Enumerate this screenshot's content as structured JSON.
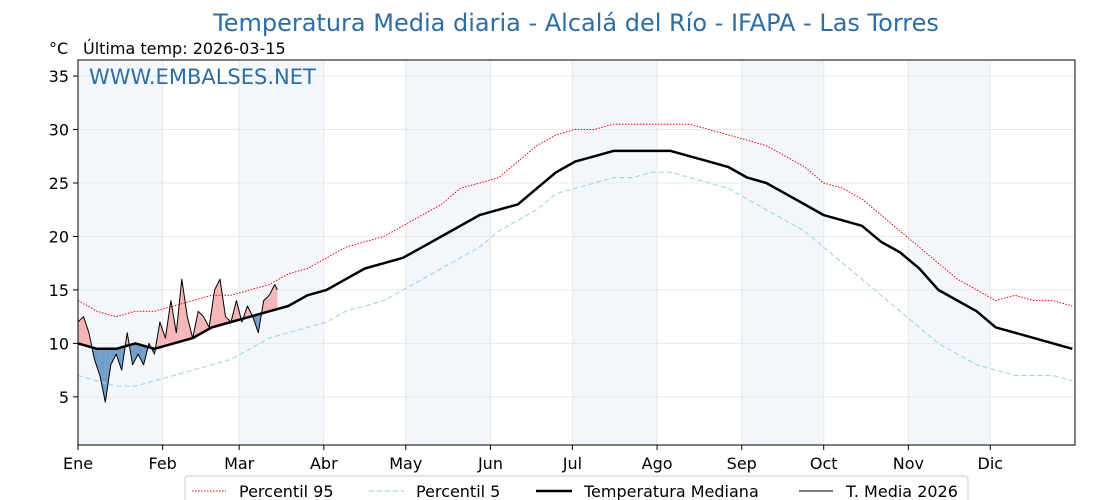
{
  "chart_data": {
    "type": "line",
    "title": "Temperatura Media diaria - Alcalá del Río - IFAPA - Las Torres",
    "unit_label": "°C",
    "last_temp_label": "Última temp: 2026-03-15",
    "watermark": "WWW.EMBALSES.NET",
    "ylim": [
      0.5,
      36.5
    ],
    "yticks": [
      5,
      10,
      15,
      20,
      25,
      30,
      35
    ],
    "xlim": [
      1,
      366
    ],
    "month_labels": [
      "Ene",
      "Feb",
      "Mar",
      "Abr",
      "May",
      "Jun",
      "Jul",
      "Ago",
      "Sep",
      "Oct",
      "Nov",
      "Dic"
    ],
    "month_start_days": [
      1,
      32,
      60,
      91,
      121,
      152,
      182,
      213,
      244,
      274,
      305,
      335
    ],
    "shaded_months": [
      "Ene",
      "Mar",
      "May",
      "Jul",
      "Sep",
      "Nov"
    ],
    "grid": true,
    "legend_position": "bottom-center",
    "series": [
      {
        "name": "Percentil 95",
        "color": "#ff0000",
        "style": "dotted",
        "x": [
          1,
          8,
          15,
          22,
          29,
          36,
          43,
          50,
          57,
          64,
          71,
          78,
          85,
          92,
          99,
          106,
          113,
          120,
          127,
          134,
          141,
          148,
          155,
          162,
          169,
          176,
          183,
          190,
          197,
          204,
          211,
          218,
          225,
          232,
          239,
          246,
          253,
          260,
          267,
          274,
          281,
          288,
          295,
          302,
          309,
          316,
          323,
          330,
          337,
          344,
          351,
          358,
          365
        ],
        "values": [
          14.0,
          13.0,
          12.5,
          13.0,
          13.0,
          13.5,
          14.0,
          14.5,
          14.5,
          15.0,
          15.5,
          16.5,
          17.0,
          18.0,
          19.0,
          19.5,
          20.0,
          21.0,
          22.0,
          23.0,
          24.5,
          25.0,
          25.5,
          27.0,
          28.5,
          29.5,
          30.0,
          30.0,
          30.5,
          30.5,
          30.5,
          30.5,
          30.5,
          30.0,
          29.5,
          29.0,
          28.5,
          27.5,
          26.5,
          25.0,
          24.5,
          23.5,
          22.0,
          20.5,
          19.0,
          17.5,
          16.0,
          15.0,
          14.0,
          14.5,
          14.0,
          14.0,
          13.5
        ]
      },
      {
        "name": "Percentil 5",
        "color": "#a8d8e0",
        "style": "dashed",
        "x": [
          1,
          8,
          15,
          22,
          29,
          36,
          43,
          50,
          57,
          64,
          71,
          78,
          85,
          92,
          99,
          106,
          113,
          120,
          127,
          134,
          141,
          148,
          155,
          162,
          169,
          176,
          183,
          190,
          197,
          204,
          211,
          218,
          225,
          232,
          239,
          246,
          253,
          260,
          267,
          274,
          281,
          288,
          295,
          302,
          309,
          316,
          323,
          330,
          337,
          344,
          351,
          358,
          365
        ],
        "values": [
          7.0,
          6.5,
          6.0,
          6.0,
          6.5,
          7.0,
          7.5,
          8.0,
          8.5,
          9.5,
          10.5,
          11.0,
          11.5,
          12.0,
          13.0,
          13.5,
          14.0,
          15.0,
          16.0,
          17.0,
          18.0,
          19.0,
          20.5,
          21.5,
          22.5,
          24.0,
          24.5,
          25.0,
          25.5,
          25.5,
          26.0,
          26.0,
          25.5,
          25.0,
          24.5,
          23.5,
          22.5,
          21.5,
          20.5,
          19.0,
          17.5,
          16.0,
          14.5,
          13.0,
          11.5,
          10.0,
          9.0,
          8.0,
          7.5,
          7.0,
          7.0,
          7.0,
          6.5
        ]
      },
      {
        "name": "Temperatura Mediana",
        "color": "#000000",
        "style": "solid-thick",
        "x": [
          1,
          8,
          15,
          22,
          29,
          36,
          43,
          50,
          57,
          64,
          71,
          78,
          85,
          92,
          99,
          106,
          113,
          120,
          127,
          134,
          141,
          148,
          155,
          162,
          169,
          176,
          183,
          190,
          197,
          204,
          211,
          218,
          225,
          232,
          239,
          246,
          253,
          260,
          267,
          274,
          281,
          288,
          295,
          302,
          309,
          316,
          323,
          330,
          337,
          344,
          351,
          358,
          365
        ],
        "values": [
          10.0,
          9.5,
          9.5,
          10.0,
          9.5,
          10.0,
          10.5,
          11.5,
          12.0,
          12.5,
          13.0,
          13.5,
          14.5,
          15.0,
          16.0,
          17.0,
          17.5,
          18.0,
          19.0,
          20.0,
          21.0,
          22.0,
          22.5,
          23.0,
          24.5,
          26.0,
          27.0,
          27.5,
          28.0,
          28.0,
          28.0,
          28.0,
          27.5,
          27.0,
          26.5,
          25.5,
          25.0,
          24.0,
          23.0,
          22.0,
          21.5,
          21.0,
          19.5,
          18.5,
          17.0,
          15.0,
          14.0,
          13.0,
          11.5,
          11.0,
          10.5,
          10.0,
          9.5
        ]
      },
      {
        "name": "T. Media 2026",
        "color": "#000000",
        "style": "solid-thin",
        "x": [
          1,
          3,
          5,
          7,
          9,
          11,
          13,
          15,
          17,
          19,
          21,
          23,
          25,
          27,
          29,
          31,
          33,
          35,
          37,
          39,
          41,
          43,
          45,
          47,
          49,
          51,
          53,
          55,
          57,
          59,
          61,
          63,
          65,
          67,
          69,
          71,
          73,
          74
        ],
        "values": [
          12.0,
          12.5,
          11.0,
          8.5,
          7.0,
          4.5,
          8.0,
          9.0,
          7.5,
          11.0,
          8.0,
          9.0,
          8.0,
          10.0,
          9.0,
          12.0,
          10.5,
          14.0,
          11.0,
          16.0,
          12.5,
          10.5,
          13.0,
          12.5,
          11.5,
          15.0,
          16.0,
          12.5,
          12.0,
          14.0,
          12.0,
          13.5,
          12.5,
          11.0,
          14.0,
          14.5,
          15.5,
          15.0
        ]
      }
    ]
  }
}
